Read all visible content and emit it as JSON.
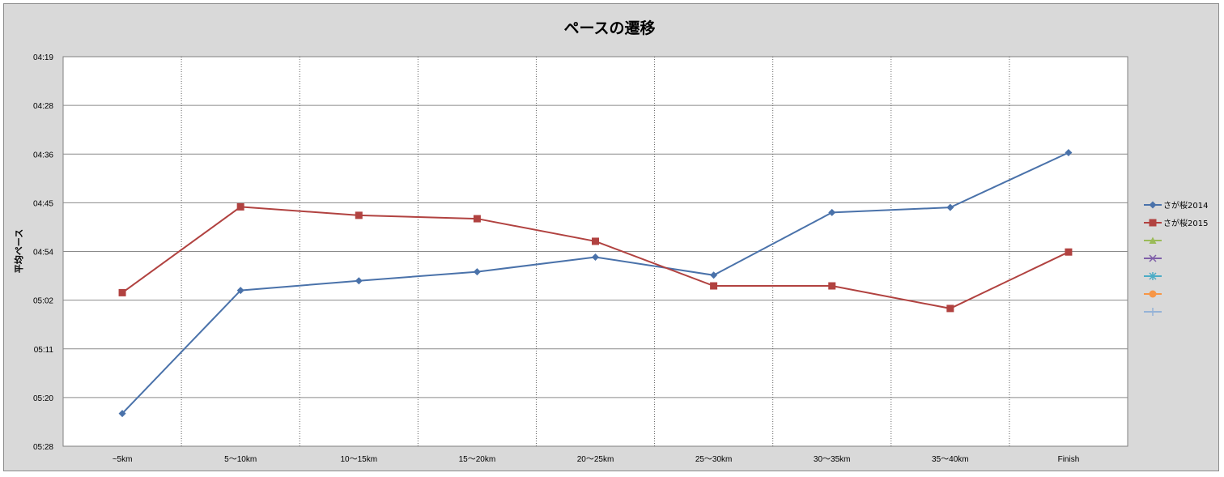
{
  "chart_data": {
    "type": "line",
    "title": "ペースの遷移",
    "xlabel": "",
    "ylabel": "平均ペース",
    "categories": [
      "~5km",
      "5～10km",
      "10～15km",
      "15～20km",
      "20～25km",
      "25～30km",
      "30～35km",
      "35～40km",
      "Finish"
    ],
    "y_ticks": [
      "04:19",
      "04:28",
      "04:36",
      "04:45",
      "04:54",
      "05:02",
      "05:11",
      "05:20",
      "05:28"
    ],
    "ylim_seconds": [
      259,
      328
    ],
    "y_axis_inverted": true,
    "grid": {
      "horizontal": "solid",
      "vertical": "dotted"
    },
    "legend_position": "right",
    "series": [
      {
        "name": "さが桜2014",
        "color": "#4a72aa",
        "marker": "diamond",
        "values_pace": [
          "05:22",
          "05:00",
          "04:59",
          "04:57",
          "04:54",
          "04:57",
          "04:46",
          "04:45",
          "04:36"
        ],
        "values_seconds": [
          322.2,
          300.4,
          298.7,
          297.1,
          294.5,
          297.7,
          286.6,
          285.7,
          276.0
        ]
      },
      {
        "name": "さが桜2015",
        "color": "#b14240",
        "marker": "square",
        "values_pace": [
          "05:00",
          "04:45",
          "04:47",
          "04:47",
          "04:51",
          "04:59",
          "04:59",
          "05:03",
          "04:54"
        ],
        "values_seconds": [
          300.8,
          285.6,
          287.1,
          287.7,
          291.7,
          299.6,
          299.6,
          303.6,
          293.6
        ]
      }
    ],
    "legend_extra_markers": [
      {
        "marker": "triangle",
        "color": "#9bbb59"
      },
      {
        "marker": "x",
        "color": "#7f5fa8"
      },
      {
        "marker": "asterisk",
        "color": "#4bacc6"
      },
      {
        "marker": "circle",
        "color": "#f79646"
      },
      {
        "marker": "plus",
        "color": "#95b3d7"
      }
    ]
  }
}
